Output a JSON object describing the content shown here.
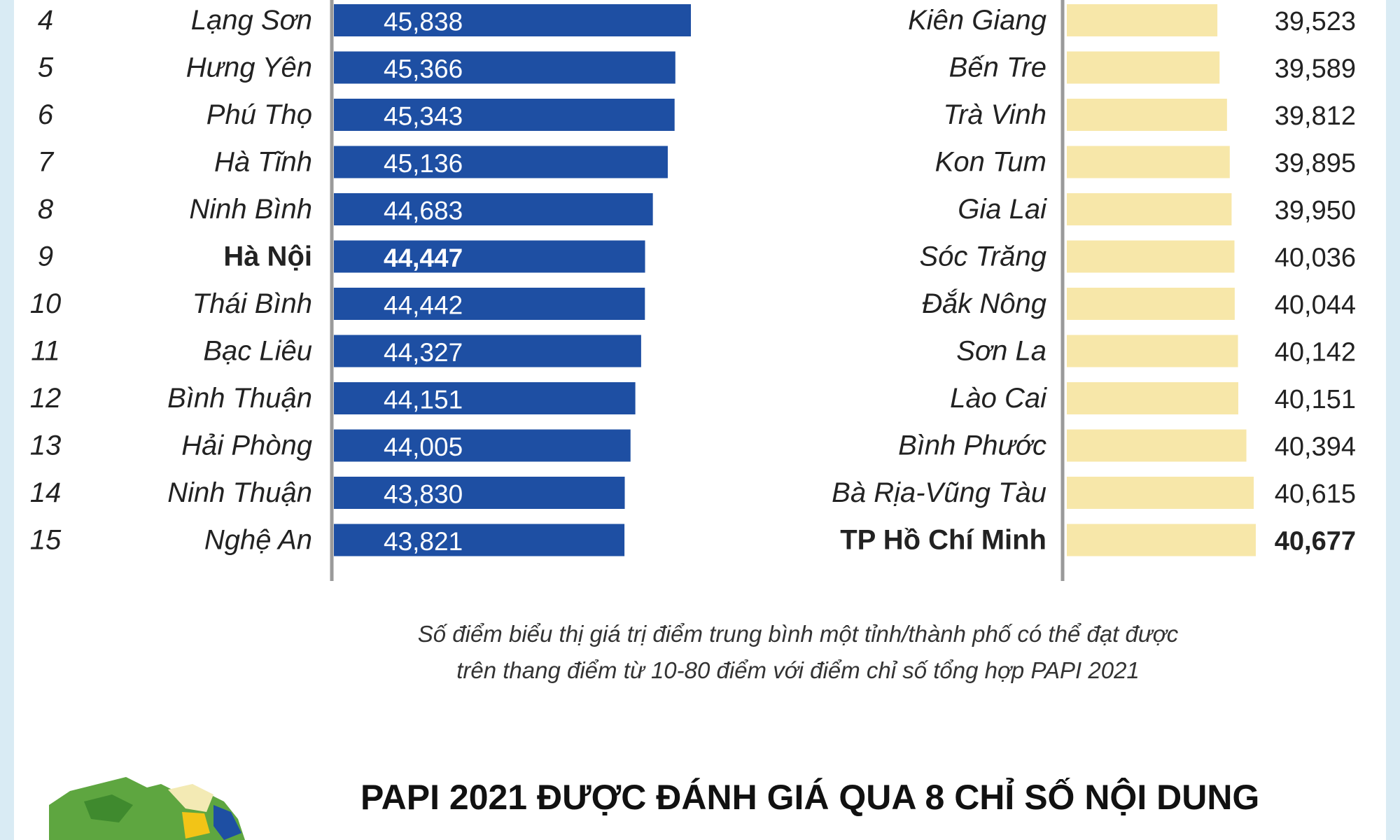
{
  "chart_data": [
    {
      "type": "bar",
      "orientation": "horizontal",
      "title": "",
      "ranks": [
        "4",
        "5",
        "6",
        "7",
        "8",
        "9",
        "10",
        "11",
        "12",
        "13",
        "14",
        "15"
      ],
      "categories": [
        "Lạng Sơn",
        "Hưng Yên",
        "Phú Thọ",
        "Hà Tĩnh",
        "Ninh Bình",
        "Hà Nội",
        "Thái Bình",
        "Bạc Liêu",
        "Bình Thuận",
        "Hải Phòng",
        "Ninh Thuận",
        "Nghệ An"
      ],
      "values": [
        45.838,
        45.366,
        45.343,
        45.136,
        44.683,
        44.447,
        44.442,
        44.327,
        44.151,
        44.005,
        43.83,
        43.821
      ],
      "value_labels": [
        "45,838",
        "45,366",
        "45,343",
        "45,136",
        "44,683",
        "44,447",
        "44,442",
        "44,327",
        "44,151",
        "44,005",
        "43,830",
        "43,821"
      ],
      "highlight": "Hà Nội",
      "bar_color": "#1e4fa3",
      "ylim": [
        35,
        46
      ]
    },
    {
      "type": "bar",
      "orientation": "horizontal",
      "title": "",
      "categories": [
        "Kiên Giang",
        "Bến Tre",
        "Trà Vinh",
        "Kon Tum",
        "Gia Lai",
        "Sóc Trăng",
        "Đắk Nông",
        "Sơn La",
        "Lào Cai",
        "Bình Phước",
        "Bà Rịa-Vũng Tàu",
        "TP Hồ Chí Minh"
      ],
      "values": [
        39.523,
        39.589,
        39.812,
        39.895,
        39.95,
        40.036,
        40.044,
        40.142,
        40.151,
        40.394,
        40.615,
        40.677
      ],
      "value_labels": [
        "39,523",
        "39,589",
        "39,812",
        "39,895",
        "39,950",
        "40,036",
        "40,044",
        "40,142",
        "40,151",
        "40,394",
        "40,615",
        "40,677"
      ],
      "highlight": "TP Hồ Chí Minh",
      "bar_color": "#f7e7a9",
      "ylim": [
        35,
        41
      ]
    }
  ],
  "footnote": {
    "line1": "Số điểm biểu thị giá trị điểm trung bình một tỉnh/thành phố có thể đạt được",
    "line2": "trên thang điểm từ 10-80 điểm với điểm chỉ số tổng hợp PAPI 2021"
  },
  "bottom_heading": "PAPI 2021 ĐƯỢC ĐÁNH GIÁ QUA 8 CHỈ SỐ NỘI DUNG",
  "colors": {
    "axis": "#9a9a9a",
    "side_strip": "#d9ebf4",
    "map_green": "#5ea640",
    "map_light": "#f3eab4",
    "map_yellow": "#f2c417",
    "map_blue": "#1e4fa3"
  }
}
